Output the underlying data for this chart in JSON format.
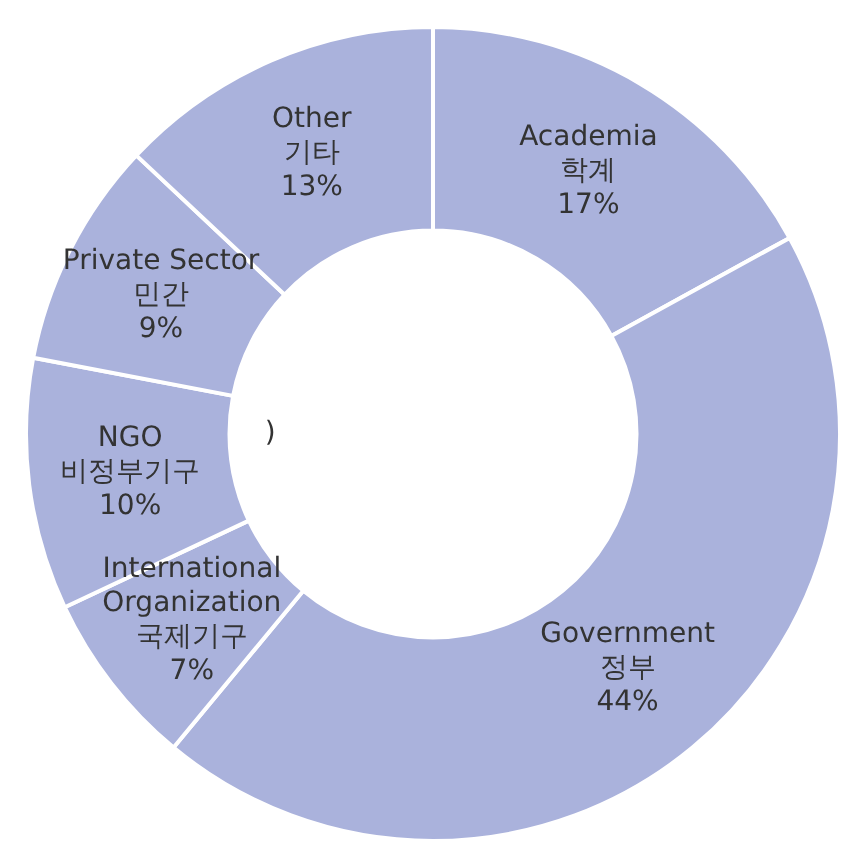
{
  "chart_data": {
    "type": "donut",
    "categories": [
      "Academia\n학계",
      "Government\n정부",
      "International\nOrganization\n국제기구",
      "NGO\n비정부기구",
      "Private Sector\n민간",
      "Other\n기타"
    ],
    "values": [
      17,
      44,
      7,
      10,
      9,
      13
    ],
    "value_labels": [
      "17%",
      "44%",
      "7%",
      "10%",
      "9%",
      "13%"
    ],
    "colors": [
      "#aab2dc",
      "#aab2dc",
      "#aab2dc",
      "#aab2dc",
      "#aab2dc",
      "#aab2dc"
    ],
    "annotations": [
      ")"
    ],
    "legend": false
  }
}
